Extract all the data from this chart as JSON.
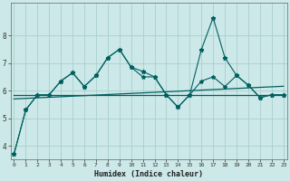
{
  "xlabel": "Humidex (Indice chaleur)",
  "background_color": "#cce8e8",
  "grid_color": "#aacece",
  "line_color": "#006060",
  "x": [
    0,
    1,
    2,
    3,
    4,
    5,
    6,
    7,
    8,
    9,
    10,
    11,
    12,
    13,
    14,
    15,
    16,
    17,
    18,
    19,
    20,
    21,
    22,
    23
  ],
  "series1": [
    3.7,
    5.3,
    5.85,
    5.85,
    6.35,
    6.65,
    6.15,
    6.55,
    7.2,
    7.5,
    6.85,
    6.7,
    6.5,
    5.85,
    5.4,
    5.85,
    7.5,
    8.65,
    7.2,
    6.55,
    6.2,
    5.75,
    5.85,
    5.85
  ],
  "series2": [
    3.7,
    5.3,
    5.85,
    5.85,
    6.35,
    6.65,
    6.15,
    6.55,
    7.2,
    7.5,
    6.85,
    6.5,
    6.5,
    5.85,
    5.4,
    5.85,
    6.35,
    6.5,
    6.15,
    6.55,
    6.2,
    5.75,
    5.85,
    5.85
  ],
  "trend_flat": [
    5.85,
    5.85,
    5.85,
    5.85,
    5.85,
    5.85,
    5.85,
    5.85,
    5.85,
    5.85,
    5.85,
    5.85,
    5.85,
    5.85,
    5.85,
    5.85,
    5.85,
    5.85,
    5.85,
    5.85,
    5.85,
    5.85,
    5.85,
    5.85
  ],
  "trend_rise": [
    5.7,
    5.72,
    5.74,
    5.76,
    5.78,
    5.8,
    5.82,
    5.84,
    5.86,
    5.88,
    5.9,
    5.92,
    5.94,
    5.96,
    5.98,
    6.0,
    6.02,
    6.04,
    6.06,
    6.08,
    6.1,
    6.12,
    6.14,
    6.16
  ],
  "ylim": [
    3.5,
    9.2
  ],
  "yticks": [
    4,
    5,
    6,
    7,
    8
  ],
  "xlim": [
    -0.3,
    23.3
  ],
  "xticks": [
    0,
    1,
    2,
    3,
    4,
    5,
    6,
    7,
    8,
    9,
    10,
    11,
    12,
    13,
    14,
    15,
    16,
    17,
    18,
    19,
    20,
    21,
    22,
    23
  ]
}
